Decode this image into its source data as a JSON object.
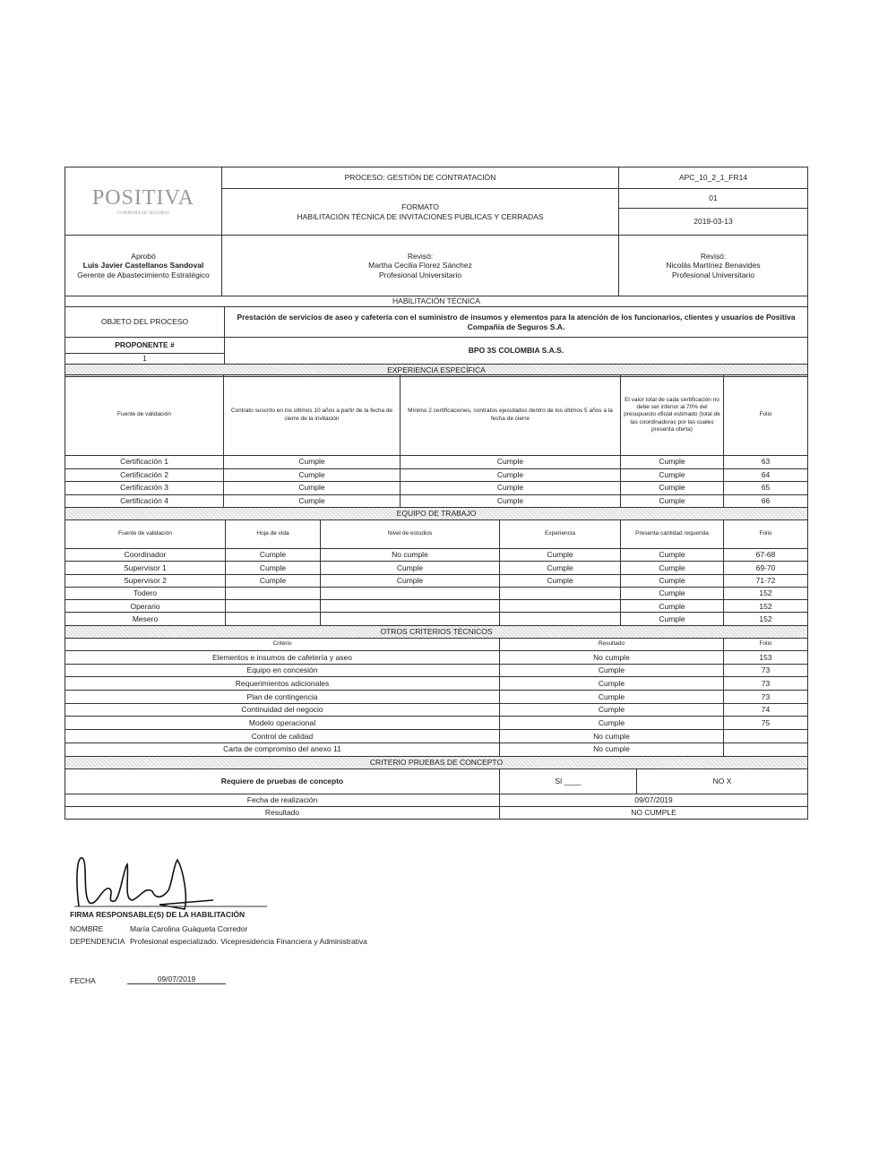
{
  "header": {
    "logo_text": "POSITIVA",
    "logo_subtext": "COMPAÑÍA DE SEGUROS",
    "process": "PROCESO: GESTIÓN DE CONTRATACIÓN",
    "format_label": "FORMATO",
    "format_title": "HABILITACIÓN TÉCNICA DE INVITACIONES PUBLICAS Y CERRADAS",
    "code": "APC_10_2_1_FR14",
    "version": "01",
    "date": "2019-03-13"
  },
  "approvals": [
    {
      "role": "Aprobó",
      "name": "Luis Javier Castellanos Sandoval",
      "title": "Gerente de Abastecimiento Estratégico"
    },
    {
      "role": "Revisó:",
      "name": "Martha Cecilia Florez Sánchez",
      "title": "Profesional Universitario"
    },
    {
      "role": "Revisó:",
      "name": "Nicolás Martínez Benavides",
      "title": "Profesional Universitario"
    }
  ],
  "habilitacion_title": "HABILITACIÓN TÉCNICA",
  "objeto": {
    "label": "OBJETO DEL PROCESO",
    "value": "Prestación de servicios de aseo y cafetería con el suministro de insumos y elementos para la atención de los funcionarios, clientes y usuarios de Positiva Compañía de Seguros S.A."
  },
  "proponente": {
    "label": "PROPONENTE #",
    "number": "1",
    "name": "BPO 3S COLOMBIA S.A.S."
  },
  "experiencia": {
    "title": "EXPERIENCIA ESPECÍFICA",
    "headers": [
      "Fuente de validación",
      "Contrato suscrito en los últimos 10 años a partir de la fecha de cierre de la invitación",
      "Mínimo 2 certificaciones, contratos ejecutados dentro de los últimos 5 años a la fecha de cierre",
      "El valor total de cada certificación no debe ser inferior al 70% del presupuesto oficial estimado (total de las coordinadoras por las cuales presenta oferta)",
      "Folio"
    ],
    "rows": [
      [
        "Certificación 1",
        "Cumple",
        "Cumple",
        "Cumple",
        "63"
      ],
      [
        "Certificación 2",
        "Cumple",
        "Cumple",
        "Cumple",
        "64"
      ],
      [
        "Certificación 3",
        "Cumple",
        "Cumple",
        "Cumple",
        "65"
      ],
      [
        "Certificación 4",
        "Cumple",
        "Cumple",
        "Cumple",
        "66"
      ]
    ]
  },
  "equipo": {
    "title": "EQUIPO DE TRABAJO",
    "headers": [
      "Fuente de validación",
      "Hoja de vida",
      "Nivel de estudios",
      "Experiencia",
      "Presenta cantidad requerida",
      "Folio"
    ],
    "rows": [
      [
        "Coordinador",
        "Cumple",
        "No cumple",
        "Cumple",
        "Cumple",
        "67-68"
      ],
      [
        "Supervisor 1",
        "Cumple",
        "Cumple",
        "Cumple",
        "Cumple",
        "69-70"
      ],
      [
        "Supervisor 2",
        "Cumple",
        "Cumple",
        "Cumple",
        "Cumple",
        "71-72"
      ],
      [
        "Todero",
        "",
        "",
        "",
        "Cumple",
        "152"
      ],
      [
        "Operario",
        "",
        "",
        "",
        "Cumple",
        "152"
      ],
      [
        "Mesero",
        "",
        "",
        "",
        "Cumple",
        "152"
      ]
    ]
  },
  "otros": {
    "title": "OTROS CRITERIOS TÉCNICOS",
    "headers": [
      "Criterio",
      "Resultado",
      "Folio"
    ],
    "rows": [
      [
        "Elementos e insumos de cafetería y aseo",
        "No cumple",
        "153"
      ],
      [
        "Equipo en concesión",
        "Cumple",
        "73"
      ],
      [
        "Requerimientos adicionales",
        "Cumple",
        "73"
      ],
      [
        "Plan de contingencia",
        "Cumple",
        "73"
      ],
      [
        "Continuidad del negocio",
        "Cumple",
        "74"
      ],
      [
        "Modelo operacional",
        "Cumple",
        "75"
      ],
      [
        "Control de calidad",
        "No cumple",
        ""
      ],
      [
        "Carta de compromiso del anexo 11",
        "No cumple",
        ""
      ]
    ]
  },
  "pruebas": {
    "title": "CRITERIO PRUEBAS DE CONCEPTO",
    "requiere_label": "Requiere de pruebas de concepto",
    "si": "SI ____",
    "no": "NO  X",
    "fecha_label": "Fecha de realización",
    "fecha": "09/07/2019",
    "resultado_label": "Resultado",
    "resultado": "NO CUMPLE"
  },
  "firma": {
    "label": "FIRMA RESPONSABLE(S) DE LA  HABILITACIÓN",
    "nombre_label": "NOMBRE",
    "nombre": "María Carolina Guáqueta Corredor",
    "dependencia_label": "DEPENDENCIA",
    "dependencia": "Profesional especializado. Vicepresidencia Financiera y Administrativa",
    "fecha_label": "FECHA",
    "fecha": "09/07/2019"
  }
}
